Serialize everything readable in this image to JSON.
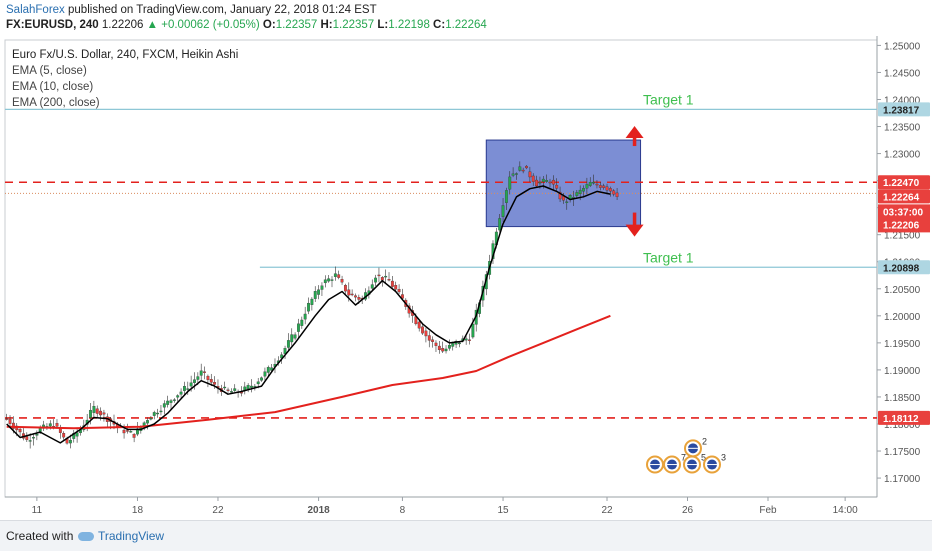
{
  "header": {
    "author": "SalahForex",
    "published": "published on TradingView.com, January 22, 2018 01:24 EST",
    "symbol": "FX:EURUSD, 240",
    "last": "1.22206",
    "change": "+0.00062 (+0.05%)",
    "o_label": "O:",
    "o": "1.22357",
    "h_label": "H:",
    "h": "1.22357",
    "l_label": "L:",
    "l": "1.22198",
    "c_label": "C:",
    "c": "1.22264"
  },
  "legend": {
    "title": "Euro Fx/U.S. Dollar, 240, FXCM, Heikin Ashi",
    "studies": [
      "EMA (5, close)",
      "EMA (10, close)",
      "EMA (200, close)"
    ]
  },
  "footer": {
    "created": "Created with",
    "brand": "TradingView"
  },
  "annotations": {
    "target_top": "Target 1",
    "target_bottom": "Target 1"
  },
  "price_tags": {
    "target_top": "1.23817",
    "resistance": "1.22470",
    "current": "1.22264",
    "countdown": "03:37:00",
    "last": "1.22206",
    "target_bottom": "1.20898",
    "support": "1.18112"
  },
  "event_badges": [
    "2",
    "7",
    "5",
    "3"
  ],
  "colors": {
    "bull": "#26a650",
    "bear": "#e8403d",
    "ema200": "#e3211d",
    "ema_black": "#000000",
    "dash_red": "#e3211d",
    "target_line": "#8ec7d6",
    "target_text": "#3fbf4f",
    "box_fill": "#4a62c4",
    "tag_red": "#e8403d",
    "tag_blue": "#aed6e2"
  },
  "chart_data": {
    "type": "candlestick",
    "ylim": [
      1.1665,
      1.251
    ],
    "y_ticks": [
      "1.25000",
      "1.24500",
      "1.24000",
      "1.23500",
      "1.23000",
      "1.22500",
      "1.22000",
      "1.21500",
      "1.21000",
      "1.20500",
      "1.20000",
      "1.19500",
      "1.19000",
      "1.18500",
      "1.18000",
      "1.17500",
      "1.17000"
    ],
    "x_ticks": [
      {
        "label": "11",
        "bar": 9
      },
      {
        "label": "18",
        "bar": 39
      },
      {
        "label": "22",
        "bar": 63
      },
      {
        "label": "2018",
        "bar": 93
      },
      {
        "label": "8",
        "bar": 118
      },
      {
        "label": "15",
        "bar": 148
      },
      {
        "label": "22",
        "bar": 179
      },
      {
        "label": "26",
        "bar": 203
      },
      {
        "label": "Feb",
        "bar": 227
      },
      {
        "label": "14:00",
        "bar": 250
      }
    ],
    "bar_count": 260,
    "horizontal_lines": [
      {
        "name": "target-top",
        "value": 1.23817,
        "style": "solid",
        "from_bar": 0
      },
      {
        "name": "resistance",
        "value": 1.2247,
        "style": "dashed",
        "from_bar": 0
      },
      {
        "name": "target-bottom",
        "value": 1.20898,
        "style": "solid",
        "from_bar": 76
      },
      {
        "name": "support",
        "value": 1.18112,
        "style": "dashed",
        "from_bar": 0
      }
    ],
    "range_box": {
      "from_bar": 143,
      "to_bar": 189,
      "top": 1.2325,
      "bottom": 1.2165
    },
    "ema200": [
      [
        0,
        1.1795
      ],
      [
        20,
        1.1792
      ],
      [
        40,
        1.1795
      ],
      [
        60,
        1.1808
      ],
      [
        80,
        1.1822
      ],
      [
        100,
        1.185
      ],
      [
        115,
        1.1872
      ],
      [
        130,
        1.1885
      ],
      [
        140,
        1.1898
      ],
      [
        150,
        1.1925
      ],
      [
        160,
        1.195
      ],
      [
        170,
        1.1975
      ],
      [
        180,
        1.2
      ]
    ],
    "ema_fast": [
      [
        0,
        1.18
      ],
      [
        4,
        1.1775
      ],
      [
        10,
        1.1785
      ],
      [
        16,
        1.1765
      ],
      [
        22,
        1.179
      ],
      [
        26,
        1.1812
      ],
      [
        30,
        1.181
      ],
      [
        36,
        1.179
      ],
      [
        40,
        1.179
      ],
      [
        44,
        1.18
      ],
      [
        48,
        1.182
      ],
      [
        54,
        1.186
      ],
      [
        58,
        1.188
      ],
      [
        62,
        1.187
      ],
      [
        66,
        1.1855
      ],
      [
        70,
        1.186
      ],
      [
        76,
        1.187
      ],
      [
        80,
        1.1905
      ],
      [
        86,
        1.195
      ],
      [
        92,
        1.2
      ],
      [
        96,
        1.203
      ],
      [
        100,
        1.2045
      ],
      [
        104,
        1.202
      ],
      [
        108,
        1.204
      ],
      [
        112,
        1.2065
      ],
      [
        116,
        1.2045
      ],
      [
        120,
        1.2015
      ],
      [
        124,
        1.1985
      ],
      [
        128,
        1.1965
      ],
      [
        132,
        1.195
      ],
      [
        136,
        1.1953
      ],
      [
        140,
        1.2
      ],
      [
        144,
        1.209
      ],
      [
        148,
        1.217
      ],
      [
        152,
        1.222
      ],
      [
        156,
        1.2235
      ],
      [
        160,
        1.224
      ],
      [
        164,
        1.223
      ],
      [
        168,
        1.2215
      ],
      [
        172,
        1.222
      ],
      [
        176,
        1.223
      ],
      [
        180,
        1.2225
      ]
    ],
    "candles_ohlc_path": [
      [
        0,
        1.181
      ],
      [
        6,
        1.177
      ],
      [
        10,
        1.179
      ],
      [
        14,
        1.18
      ],
      [
        18,
        1.1765
      ],
      [
        22,
        1.179
      ],
      [
        26,
        1.183
      ],
      [
        30,
        1.181
      ],
      [
        34,
        1.179
      ],
      [
        38,
        1.178
      ],
      [
        42,
        1.181
      ],
      [
        46,
        1.183
      ],
      [
        50,
        1.185
      ],
      [
        54,
        1.187
      ],
      [
        58,
        1.1895
      ],
      [
        62,
        1.187
      ],
      [
        66,
        1.186
      ],
      [
        70,
        1.186
      ],
      [
        74,
        1.1875
      ],
      [
        78,
        1.19
      ],
      [
        82,
        1.193
      ],
      [
        86,
        1.197
      ],
      [
        90,
        1.202
      ],
      [
        94,
        1.206
      ],
      [
        98,
        1.2075
      ],
      [
        102,
        1.204
      ],
      [
        106,
        1.203
      ],
      [
        110,
        1.2075
      ],
      [
        114,
        1.2065
      ],
      [
        118,
        1.203
      ],
      [
        122,
        1.199
      ],
      [
        126,
        1.1955
      ],
      [
        130,
        1.1935
      ],
      [
        134,
        1.195
      ],
      [
        138,
        1.196
      ],
      [
        142,
        1.205
      ],
      [
        146,
        1.216
      ],
      [
        150,
        1.226
      ],
      [
        154,
        1.2275
      ],
      [
        158,
        1.2245
      ],
      [
        162,
        1.225
      ],
      [
        166,
        1.221
      ],
      [
        170,
        1.2225
      ],
      [
        174,
        1.2245
      ],
      [
        178,
        1.224
      ],
      [
        182,
        1.2225
      ]
    ]
  }
}
